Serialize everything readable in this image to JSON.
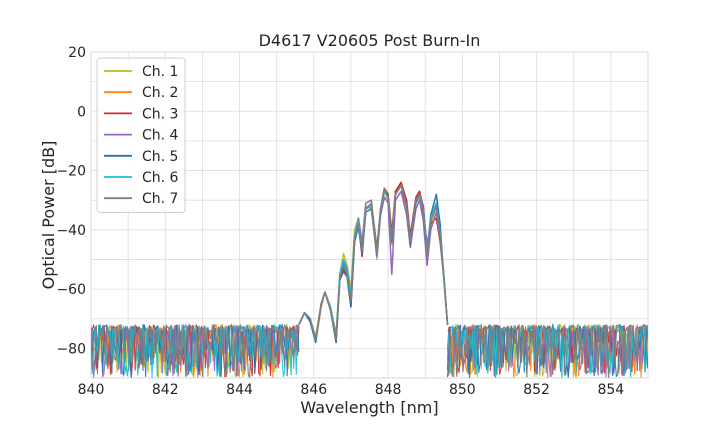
{
  "chart_data": {
    "type": "line",
    "title": "D4617 V20605 Post Burn-In",
    "xlabel": "Wavelength [nm]",
    "ylabel": "Optical Power [dB]",
    "xlim": [
      840,
      855
    ],
    "ylim": [
      -90,
      20
    ],
    "x_ticks": [
      840,
      842,
      844,
      846,
      848,
      850,
      852,
      854
    ],
    "y_ticks": [
      20,
      0,
      -20,
      -40,
      -60,
      -80
    ],
    "x_tick_labels": [
      "840",
      "842",
      "844",
      "846",
      "848",
      "850",
      "852",
      "854"
    ],
    "y_tick_labels": [
      "20",
      "0",
      "−20",
      "−40",
      "−60",
      "−80"
    ],
    "grid": true,
    "legend_position": "top-left",
    "noise_floor": {
      "range": [
        -90,
        -72
      ],
      "x_ranges": [
        [
          840,
          845.6
        ],
        [
          849.6,
          855
        ]
      ]
    },
    "series": [
      {
        "name": "Ch. 1",
        "color": "#bcbd22",
        "points": [
          [
            845.6,
            -72
          ],
          [
            845.75,
            -68
          ],
          [
            845.9,
            -70
          ],
          [
            846.05,
            -76
          ],
          [
            846.2,
            -65
          ],
          [
            846.3,
            -61
          ],
          [
            846.45,
            -66
          ],
          [
            846.6,
            -75
          ],
          [
            846.7,
            -55
          ],
          [
            846.8,
            -48
          ],
          [
            846.9,
            -52
          ],
          [
            847.0,
            -60
          ],
          [
            847.1,
            -40
          ],
          [
            847.2,
            -36
          ],
          [
            847.3,
            -45
          ],
          [
            847.4,
            -32
          ],
          [
            847.55,
            -33
          ],
          [
            847.7,
            -50
          ],
          [
            847.8,
            -34
          ],
          [
            847.9,
            -27
          ],
          [
            848.0,
            -30
          ],
          [
            848.1,
            -45
          ],
          [
            848.2,
            -28
          ],
          [
            848.35,
            -25
          ],
          [
            848.5,
            -33
          ],
          [
            848.6,
            -45
          ],
          [
            848.75,
            -31
          ],
          [
            848.85,
            -29
          ],
          [
            848.95,
            -35
          ],
          [
            849.05,
            -50
          ],
          [
            849.15,
            -38
          ],
          [
            849.3,
            -32
          ],
          [
            849.4,
            -42
          ],
          [
            849.5,
            -55
          ],
          [
            849.6,
            -72
          ]
        ]
      },
      {
        "name": "Ch. 2",
        "color": "#ff7f0e",
        "points": [
          [
            845.6,
            -72
          ],
          [
            845.75,
            -68
          ],
          [
            845.9,
            -70
          ],
          [
            846.05,
            -78
          ],
          [
            846.2,
            -66
          ],
          [
            846.3,
            -61
          ],
          [
            846.45,
            -67
          ],
          [
            846.6,
            -76
          ],
          [
            846.7,
            -56
          ],
          [
            846.8,
            -52
          ],
          [
            846.9,
            -55
          ],
          [
            847.0,
            -64
          ],
          [
            847.1,
            -43
          ],
          [
            847.2,
            -38
          ],
          [
            847.3,
            -48
          ],
          [
            847.4,
            -33
          ],
          [
            847.55,
            -31
          ],
          [
            847.7,
            -47
          ],
          [
            847.8,
            -33
          ],
          [
            847.9,
            -26
          ],
          [
            848.0,
            -28
          ],
          [
            848.1,
            -42
          ],
          [
            848.2,
            -27
          ],
          [
            848.35,
            -24
          ],
          [
            848.5,
            -31
          ],
          [
            848.6,
            -43
          ],
          [
            848.75,
            -30
          ],
          [
            848.85,
            -27
          ],
          [
            848.95,
            -32
          ],
          [
            849.05,
            -48
          ],
          [
            849.15,
            -36
          ],
          [
            849.3,
            -31
          ],
          [
            849.4,
            -42
          ],
          [
            849.5,
            -56
          ],
          [
            849.6,
            -72
          ]
        ]
      },
      {
        "name": "Ch. 3",
        "color": "#d62728",
        "points": [
          [
            845.6,
            -72
          ],
          [
            845.75,
            -68
          ],
          [
            845.9,
            -70
          ],
          [
            846.05,
            -77
          ],
          [
            846.2,
            -65
          ],
          [
            846.3,
            -61
          ],
          [
            846.45,
            -67
          ],
          [
            846.6,
            -78
          ],
          [
            846.7,
            -57
          ],
          [
            846.8,
            -54
          ],
          [
            846.9,
            -56
          ],
          [
            847.0,
            -66
          ],
          [
            847.1,
            -44
          ],
          [
            847.2,
            -38
          ],
          [
            847.3,
            -49
          ],
          [
            847.4,
            -33
          ],
          [
            847.55,
            -31
          ],
          [
            847.7,
            -46
          ],
          [
            847.8,
            -33
          ],
          [
            847.9,
            -26
          ],
          [
            848.0,
            -28
          ],
          [
            848.1,
            -41
          ],
          [
            848.2,
            -27
          ],
          [
            848.35,
            -24
          ],
          [
            848.5,
            -30
          ],
          [
            848.6,
            -42
          ],
          [
            848.75,
            -29
          ],
          [
            848.85,
            -27
          ],
          [
            848.95,
            -34
          ],
          [
            849.05,
            -45
          ],
          [
            849.15,
            -38
          ],
          [
            849.3,
            -36
          ],
          [
            849.4,
            -44
          ],
          [
            849.5,
            -56
          ],
          [
            849.6,
            -72
          ]
        ]
      },
      {
        "name": "Ch. 4",
        "color": "#9467bd",
        "points": [
          [
            845.6,
            -72
          ],
          [
            845.75,
            -68
          ],
          [
            845.9,
            -70
          ],
          [
            846.05,
            -77
          ],
          [
            846.2,
            -65
          ],
          [
            846.3,
            -61
          ],
          [
            846.45,
            -66
          ],
          [
            846.6,
            -77
          ],
          [
            846.7,
            -56
          ],
          [
            846.8,
            -51
          ],
          [
            846.9,
            -54
          ],
          [
            847.0,
            -63
          ],
          [
            847.1,
            -42
          ],
          [
            847.2,
            -36
          ],
          [
            847.3,
            -44
          ],
          [
            847.4,
            -31
          ],
          [
            847.55,
            -30
          ],
          [
            847.7,
            -49
          ],
          [
            847.8,
            -35
          ],
          [
            847.9,
            -29
          ],
          [
            848.0,
            -31
          ],
          [
            848.1,
            -55
          ],
          [
            848.2,
            -30
          ],
          [
            848.35,
            -27
          ],
          [
            848.5,
            -35
          ],
          [
            848.6,
            -46
          ],
          [
            848.75,
            -33
          ],
          [
            848.85,
            -30
          ],
          [
            848.95,
            -37
          ],
          [
            849.05,
            -52
          ],
          [
            849.15,
            -40
          ],
          [
            849.3,
            -34
          ],
          [
            849.4,
            -43
          ],
          [
            849.5,
            -55
          ],
          [
            849.6,
            -72
          ]
        ]
      },
      {
        "name": "Ch. 5",
        "color": "#1f77b4",
        "points": [
          [
            845.6,
            -72
          ],
          [
            845.75,
            -68
          ],
          [
            845.9,
            -71
          ],
          [
            846.05,
            -78
          ],
          [
            846.2,
            -65
          ],
          [
            846.3,
            -61
          ],
          [
            846.45,
            -67
          ],
          [
            846.6,
            -78
          ],
          [
            846.7,
            -57
          ],
          [
            846.8,
            -53
          ],
          [
            846.9,
            -56
          ],
          [
            847.0,
            -66
          ],
          [
            847.1,
            -44
          ],
          [
            847.2,
            -39
          ],
          [
            847.3,
            -48
          ],
          [
            847.4,
            -34
          ],
          [
            847.55,
            -33
          ],
          [
            847.7,
            -48
          ],
          [
            847.8,
            -33
          ],
          [
            847.9,
            -26
          ],
          [
            848.0,
            -29
          ],
          [
            848.1,
            -44
          ],
          [
            848.2,
            -28
          ],
          [
            848.35,
            -25
          ],
          [
            848.5,
            -32
          ],
          [
            848.6,
            -45
          ],
          [
            848.75,
            -31
          ],
          [
            848.85,
            -28
          ],
          [
            848.95,
            -32
          ],
          [
            849.05,
            -47
          ],
          [
            849.15,
            -35
          ],
          [
            849.3,
            -28
          ],
          [
            849.4,
            -38
          ],
          [
            849.5,
            -56
          ],
          [
            849.6,
            -72
          ]
        ]
      },
      {
        "name": "Ch. 6",
        "color": "#17becf",
        "points": [
          [
            845.6,
            -72
          ],
          [
            845.75,
            -68
          ],
          [
            845.9,
            -70
          ],
          [
            846.05,
            -77
          ],
          [
            846.2,
            -65
          ],
          [
            846.3,
            -61
          ],
          [
            846.45,
            -66
          ],
          [
            846.6,
            -76
          ],
          [
            846.7,
            -55
          ],
          [
            846.8,
            -50
          ],
          [
            846.9,
            -53
          ],
          [
            847.0,
            -62
          ],
          [
            847.1,
            -42
          ],
          [
            847.2,
            -37
          ],
          [
            847.3,
            -46
          ],
          [
            847.4,
            -33
          ],
          [
            847.55,
            -32
          ],
          [
            847.7,
            -47
          ],
          [
            847.8,
            -33
          ],
          [
            847.9,
            -27
          ],
          [
            848.0,
            -29
          ],
          [
            848.1,
            -43
          ],
          [
            848.2,
            -28
          ],
          [
            848.35,
            -25
          ],
          [
            848.5,
            -32
          ],
          [
            848.6,
            -44
          ],
          [
            848.75,
            -30
          ],
          [
            848.85,
            -28
          ],
          [
            848.95,
            -33
          ],
          [
            849.05,
            -47
          ],
          [
            849.15,
            -36
          ],
          [
            849.3,
            -31
          ],
          [
            849.4,
            -41
          ],
          [
            849.5,
            -55
          ],
          [
            849.6,
            -72
          ]
        ]
      },
      {
        "name": "Ch. 7",
        "color": "#7f7f7f",
        "points": [
          [
            845.6,
            -72
          ],
          [
            845.75,
            -68
          ],
          [
            845.9,
            -70
          ],
          [
            846.05,
            -77
          ],
          [
            846.2,
            -65
          ],
          [
            846.3,
            -61
          ],
          [
            846.45,
            -67
          ],
          [
            846.6,
            -77
          ],
          [
            846.7,
            -56
          ],
          [
            846.8,
            -52
          ],
          [
            846.9,
            -55
          ],
          [
            847.0,
            -64
          ],
          [
            847.1,
            -43
          ],
          [
            847.2,
            -38
          ],
          [
            847.3,
            -47
          ],
          [
            847.4,
            -33
          ],
          [
            847.55,
            -31
          ],
          [
            847.7,
            -48
          ],
          [
            847.8,
            -33
          ],
          [
            847.9,
            -26
          ],
          [
            848.0,
            -29
          ],
          [
            848.1,
            -43
          ],
          [
            848.2,
            -28
          ],
          [
            848.35,
            -25
          ],
          [
            848.5,
            -32
          ],
          [
            848.6,
            -44
          ],
          [
            848.75,
            -30
          ],
          [
            848.85,
            -28
          ],
          [
            848.95,
            -33
          ],
          [
            849.05,
            -49
          ],
          [
            849.15,
            -37
          ],
          [
            849.3,
            -32
          ],
          [
            849.4,
            -42
          ],
          [
            849.5,
            -56
          ],
          [
            849.6,
            -72
          ]
        ]
      }
    ]
  }
}
